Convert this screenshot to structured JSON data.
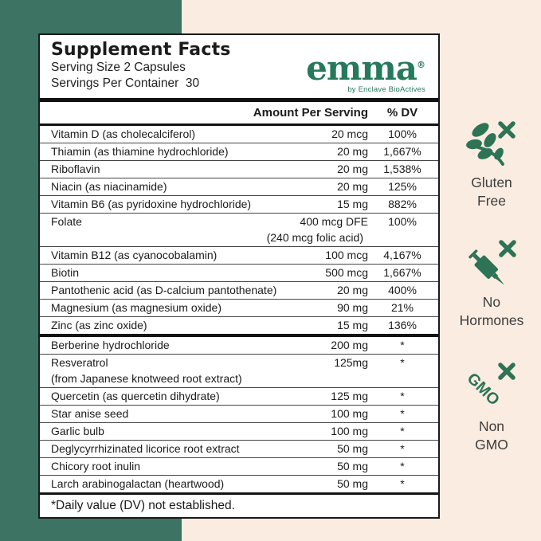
{
  "label": {
    "title": "Supplement Facts",
    "serving_size": "Serving Size 2 Capsules",
    "servings_per_container": "Servings Per Container  30",
    "brand": {
      "name": "emma",
      "reg": "®",
      "tagline": "by Enclave BioActives"
    },
    "columns": {
      "amount": "Amount Per Serving",
      "dv": "% DV"
    },
    "sections": [
      {
        "rows": [
          {
            "name": "Vitamin D (as cholecalciferol)",
            "amount": "20 mcg",
            "dv": "100%"
          },
          {
            "name": "Thiamin (as thiamine hydrochloride)",
            "amount": "20 mg",
            "dv": "1,667%"
          },
          {
            "name": "Riboflavin",
            "amount": "20 mg",
            "dv": "1,538%"
          },
          {
            "name": "Niacin (as niacinamide)",
            "amount": "20 mg",
            "dv": "125%"
          },
          {
            "name": "Vitamin B6 (as pyridoxine hydrochloride)",
            "amount": "15 mg",
            "dv": "882%"
          },
          {
            "name": "Folate",
            "amount": "400 mcg DFE",
            "dv": "100%",
            "amount_sub": "(240 mcg folic acid)"
          },
          {
            "name": "Vitamin B12 (as cyanocobalamin)",
            "amount": "100 mcg",
            "dv": "4,167%"
          },
          {
            "name": "Biotin",
            "amount": "500 mcg",
            "dv": "1,667%"
          },
          {
            "name": "Pantothenic acid (as D-calcium pantothenate)",
            "amount": "20 mg",
            "dv": "400%"
          },
          {
            "name": "Magnesium (as magnesium oxide)",
            "amount": "90 mg",
            "dv": "21%"
          },
          {
            "name": "Zinc (as zinc oxide)",
            "amount": "15 mg",
            "dv": "136%"
          }
        ]
      },
      {
        "rows": [
          {
            "name": "Berberine hydrochloride",
            "amount": "200 mg",
            "dv": "*"
          },
          {
            "name": "Resveratrol",
            "amount": "125mg",
            "dv": "*",
            "name_sub": "(from Japanese knotweed root extract)"
          },
          {
            "name": "Quercetin (as quercetin dihydrate)",
            "amount": "125 mg",
            "dv": "*"
          },
          {
            "name": "Star anise seed",
            "amount": "100 mg",
            "dv": "*"
          },
          {
            "name": "Garlic bulb",
            "amount": "100 mg",
            "dv": "*"
          },
          {
            "name": "Deglycyrrhizinated licorice root extract",
            "amount": "50 mg",
            "dv": "*"
          },
          {
            "name": "Chicory root inulin",
            "amount": "50 mg",
            "dv": "*"
          },
          {
            "name": "Larch arabinogalactan (heartwood)",
            "amount": "50 mg",
            "dv": "*"
          }
        ]
      }
    ],
    "footnote": "*Daily value (DV) not established."
  },
  "badges": [
    {
      "icon": "gluten-free-leaf-cross-icon",
      "line1": "Gluten",
      "line2": "Free"
    },
    {
      "icon": "no-hormones-syringe-cross-icon",
      "line1": "No",
      "line2": "Hormones"
    },
    {
      "icon": "non-gmo-cross-icon",
      "line1": "Non",
      "line2": "GMO"
    }
  ],
  "colors": {
    "panel_green": "#3D7362",
    "background_cream": "#FAECE1",
    "brand_green": "#27795C",
    "icon_green": "#2E7356",
    "text_dark": "#1B1B1B"
  }
}
